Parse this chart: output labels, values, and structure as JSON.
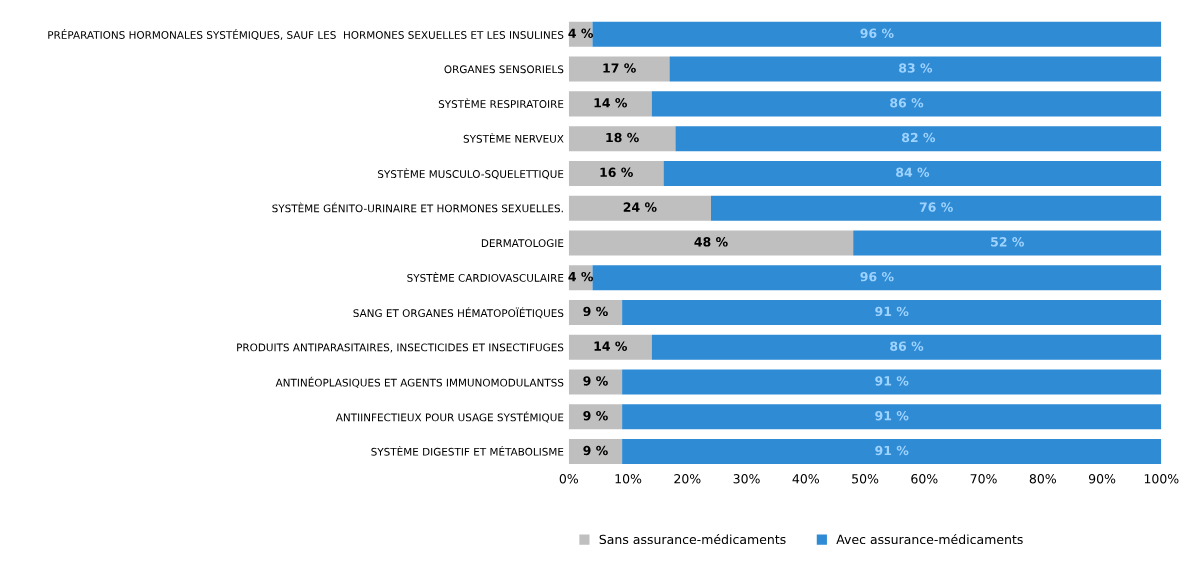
{
  "chart_data": {
    "type": "bar",
    "orientation": "horizontal",
    "stacked": true,
    "categories": [
      "PRÉPARATIONS HORMONALES SYSTÉMIQUES, SAUF LES  HORMONES SEXUELLES ET LES INSULINES",
      "ORGANES SENSORIELS",
      "SYSTÈME RESPIRATOIRE",
      "SYSTÈME NERVEUX",
      "SYSTÈME MUSCULO-SQUELETTIQUE",
      "SYSTÈME GÉNITO-URINAIRE ET HORMONES SEXUELLES.",
      "DERMATOLOGIE",
      "SYSTÈME CARDIOVASCULAIRE",
      "SANG ET ORGANES HÉMATOPOÏÉTIQUES",
      "PRODUITS ANTIPARASITAIRES, INSECTICIDES ET INSECTIFUGES",
      "ANTINÉOPLASIQUES ET AGENTS IMMUNOMODULANTSS",
      "ANTIINFECTIEUX POUR USAGE SYSTÉMIQUE",
      "SYSTÈME DIGESTIF ET MÉTABOLISME"
    ],
    "series": [
      {
        "name": "Sans assurance-médicaments",
        "color": "#bfbfbf",
        "values": [
          4,
          17,
          14,
          18,
          16,
          24,
          48,
          4,
          9,
          14,
          9,
          9,
          9
        ],
        "value_labels": [
          "4 %",
          "17 %",
          "14 %",
          "18 %",
          "16 %",
          "24 %",
          "48 %",
          "4 %",
          "9 %",
          "14 %",
          "9 %",
          "9 %",
          "9 %"
        ]
      },
      {
        "name": "Avec assurance-médicaments",
        "color": "#2e8bd4",
        "values": [
          96,
          83,
          86,
          82,
          84,
          76,
          52,
          96,
          91,
          86,
          91,
          91,
          91
        ],
        "value_labels": [
          "96 %",
          "83 %",
          "86 %",
          "82 %",
          "84 %",
          "76 %",
          "52 %",
          "96 %",
          "91 %",
          "86 %",
          "91 %",
          "91 %",
          "91 %"
        ]
      }
    ],
    "xlim": [
      0,
      100
    ],
    "xticks": [
      {
        "value": 0,
        "label": "0%"
      },
      {
        "value": 10,
        "label": "10%"
      },
      {
        "value": 20,
        "label": "20%"
      },
      {
        "value": 30,
        "label": "30%"
      },
      {
        "value": 40,
        "label": "40%"
      },
      {
        "value": 50,
        "label": "50%"
      },
      {
        "value": 60,
        "label": "60%"
      },
      {
        "value": 70,
        "label": "70%"
      },
      {
        "value": 80,
        "label": "80%"
      },
      {
        "value": 90,
        "label": "90%"
      },
      {
        "value": 100,
        "label": "100%"
      }
    ],
    "legend": "bottom left",
    "grid": false
  }
}
